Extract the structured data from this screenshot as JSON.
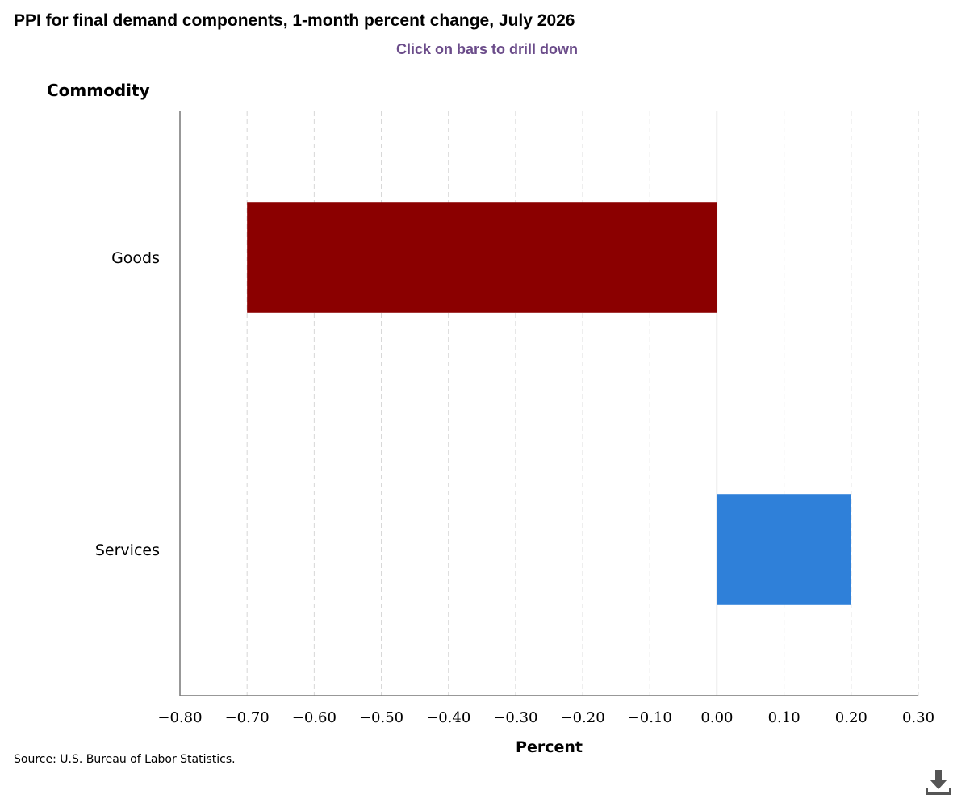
{
  "title": "PPI for final demand components, 1-month percent change, July 2026",
  "subtitle": "Click on bars to drill down",
  "source": "Source: U.S. Bureau of Labor Statistics.",
  "download_icon": "download-icon",
  "chart_data": {
    "type": "bar",
    "orientation": "horizontal",
    "categories": [
      "Goods",
      "Services"
    ],
    "values": [
      -0.7,
      0.2
    ],
    "colors": [
      "#8b0000",
      "#2f80d9"
    ],
    "xlabel": "Percent",
    "ylabel": "Commodity",
    "xlim": [
      -0.8,
      0.3
    ],
    "xticks": [
      "−0.80",
      "−0.70",
      "−0.60",
      "−0.50",
      "−0.40",
      "−0.30",
      "−0.20",
      "−0.10",
      "0.00",
      "0.10",
      "0.20",
      "0.30"
    ],
    "grid": true
  }
}
